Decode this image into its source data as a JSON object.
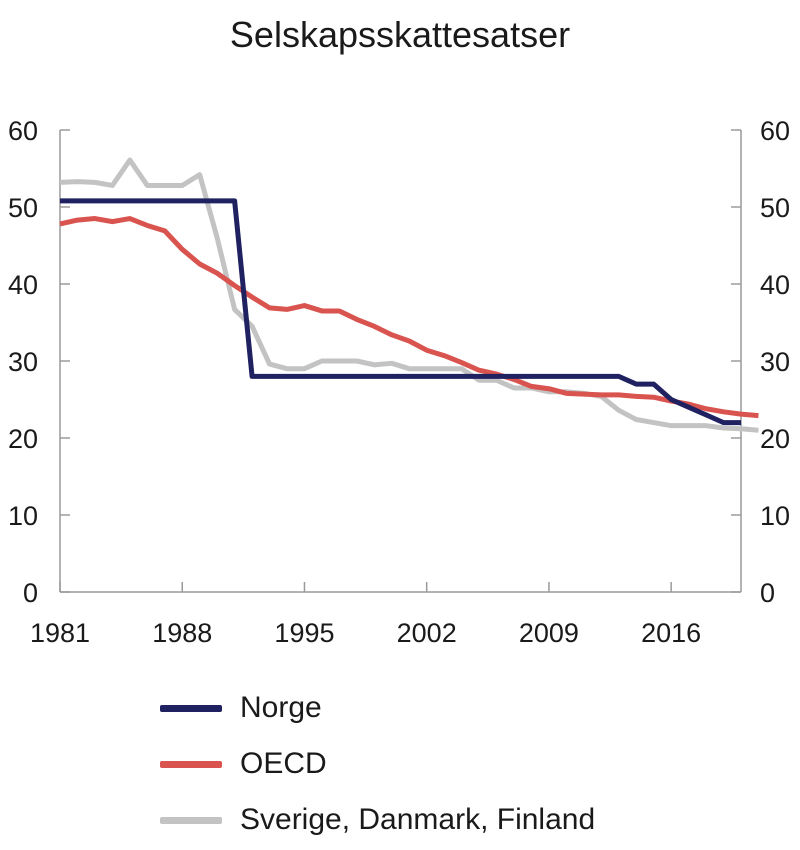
{
  "chart_data": {
    "type": "line",
    "title": "Selskapsskattesatser",
    "xlim": [
      1981,
      2020
    ],
    "ylim": [
      0,
      60
    ],
    "x_ticks": [
      "1981",
      "1988",
      "1995",
      "2002",
      "2009",
      "2016"
    ],
    "x_tick_values": [
      1981,
      1988,
      1995,
      2002,
      2009,
      2016
    ],
    "y_ticks": [
      "0",
      "10",
      "20",
      "30",
      "40",
      "50",
      "60"
    ],
    "y_tick_values": [
      0,
      10,
      20,
      30,
      40,
      50,
      60
    ],
    "y_axis_right": true,
    "grid": false,
    "legend_position": "bottom",
    "series": [
      {
        "name": "Norge",
        "color": "#1f2161",
        "points": [
          [
            1981,
            50.8
          ],
          [
            1991,
            50.8
          ],
          [
            1992,
            28
          ],
          [
            2013,
            28
          ],
          [
            2014,
            27
          ],
          [
            2015,
            27
          ],
          [
            2016,
            25
          ],
          [
            2017,
            24
          ],
          [
            2018,
            23
          ],
          [
            2019,
            22
          ],
          [
            2020,
            22
          ]
        ]
      },
      {
        "name": "OECD",
        "color": "#d9534f",
        "points": [
          [
            1981,
            47.8
          ],
          [
            1982,
            48.3
          ],
          [
            1983,
            48.5
          ],
          [
            1984,
            48.1
          ],
          [
            1985,
            48.5
          ],
          [
            1986,
            47.6
          ],
          [
            1987,
            46.9
          ],
          [
            1988,
            44.5
          ],
          [
            1989,
            42.6
          ],
          [
            1990,
            41.4
          ],
          [
            1991,
            39.8
          ],
          [
            1992,
            38.3
          ],
          [
            1993,
            36.9
          ],
          [
            1994,
            36.7
          ],
          [
            1995,
            37.2
          ],
          [
            1996,
            36.5
          ],
          [
            1997,
            36.5
          ],
          [
            1998,
            35.4
          ],
          [
            1999,
            34.5
          ],
          [
            2000,
            33.4
          ],
          [
            2001,
            32.6
          ],
          [
            2002,
            31.4
          ],
          [
            2003,
            30.7
          ],
          [
            2004,
            29.8
          ],
          [
            2005,
            28.8
          ],
          [
            2006,
            28.3
          ],
          [
            2007,
            27.6
          ],
          [
            2008,
            26.7
          ],
          [
            2009,
            26.4
          ],
          [
            2010,
            25.8
          ],
          [
            2011,
            25.7
          ],
          [
            2012,
            25.6
          ],
          [
            2013,
            25.6
          ],
          [
            2014,
            25.4
          ],
          [
            2015,
            25.3
          ],
          [
            2016,
            24.8
          ],
          [
            2017,
            24.4
          ],
          [
            2018,
            23.8
          ],
          [
            2019,
            23.4
          ],
          [
            2020,
            23.1
          ],
          [
            2021,
            22.9
          ]
        ]
      },
      {
        "name": "Sverige, Danmark, Finland",
        "color": "#c3c3c3",
        "points": [
          [
            1981,
            53.2
          ],
          [
            1982,
            53.3
          ],
          [
            1983,
            53.2
          ],
          [
            1984,
            52.8
          ],
          [
            1985,
            56.1
          ],
          [
            1986,
            52.8
          ],
          [
            1987,
            52.8
          ],
          [
            1988,
            52.8
          ],
          [
            1989,
            54.2
          ],
          [
            1990,
            46
          ],
          [
            1991,
            36.7
          ],
          [
            1992,
            34.5
          ],
          [
            1993,
            29.6
          ],
          [
            1994,
            29
          ],
          [
            1995,
            29
          ],
          [
            1996,
            30
          ],
          [
            1997,
            30
          ],
          [
            1998,
            30
          ],
          [
            1999,
            29.5
          ],
          [
            2000,
            29.7
          ],
          [
            2001,
            29
          ],
          [
            2002,
            29
          ],
          [
            2003,
            29
          ],
          [
            2004,
            29
          ],
          [
            2005,
            27.5
          ],
          [
            2006,
            27.5
          ],
          [
            2007,
            26.5
          ],
          [
            2008,
            26.5
          ],
          [
            2009,
            26
          ],
          [
            2010,
            26
          ],
          [
            2011,
            25.8
          ],
          [
            2012,
            25.4
          ],
          [
            2013,
            23.6
          ],
          [
            2014,
            22.4
          ],
          [
            2015,
            22
          ],
          [
            2016,
            21.6
          ],
          [
            2017,
            21.6
          ],
          [
            2018,
            21.6
          ],
          [
            2019,
            21.3
          ],
          [
            2020,
            21.2
          ],
          [
            2021,
            21
          ]
        ]
      }
    ]
  }
}
